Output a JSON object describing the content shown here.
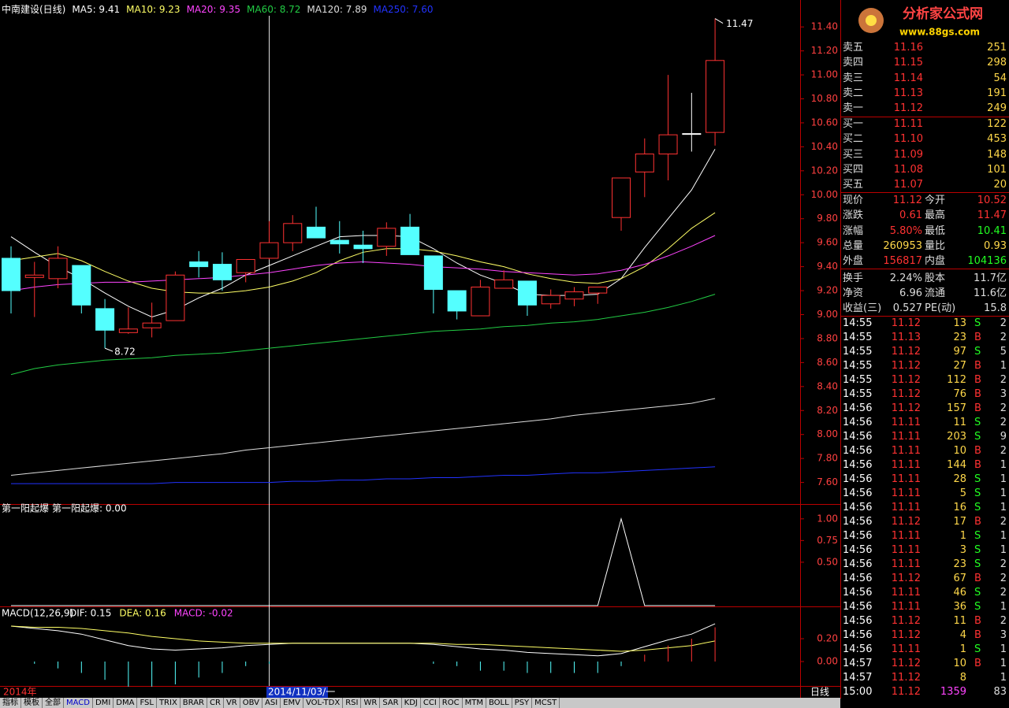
{
  "chart_data": [
    {
      "type": "candlestick",
      "title": "中南建设(日线)",
      "open": [
        9.47,
        9.31,
        9.3,
        9.41,
        9.05,
        8.85,
        8.89,
        8.95,
        9.44,
        9.42,
        9.35,
        9.47,
        9.6,
        9.73,
        9.62,
        9.58,
        9.57,
        9.73,
        9.49,
        9.2,
        8.99,
        9.22,
        9.28,
        9.09,
        9.13,
        9.18,
        9.81,
        10.19,
        10.34,
        10.51,
        10.52
      ],
      "high": [
        9.57,
        9.44,
        9.57,
        9.41,
        9.13,
        9.06,
        9.1,
        9.36,
        9.53,
        9.52,
        9.46,
        9.78,
        9.83,
        9.9,
        9.78,
        9.7,
        9.77,
        9.84,
        9.49,
        9.2,
        9.29,
        9.37,
        9.28,
        9.21,
        9.23,
        9.23,
        10.14,
        10.47,
        11.0,
        10.85,
        11.47
      ],
      "low": [
        9.01,
        8.98,
        9.22,
        9.01,
        8.72,
        8.84,
        8.81,
        8.95,
        9.31,
        9.2,
        9.27,
        9.46,
        9.53,
        9.64,
        9.51,
        9.43,
        9.49,
        9.5,
        9.01,
        8.96,
        8.99,
        9.22,
        8.99,
        9.05,
        9.07,
        9.09,
        9.7,
        9.98,
        10.12,
        10.36,
        10.41
      ],
      "close": [
        9.2,
        9.33,
        9.47,
        9.08,
        8.87,
        8.88,
        8.93,
        9.33,
        9.4,
        9.29,
        9.46,
        9.6,
        9.76,
        9.64,
        9.59,
        9.55,
        9.72,
        9.5,
        9.21,
        9.03,
        9.23,
        9.29,
        9.08,
        9.16,
        9.19,
        9.23,
        10.14,
        10.34,
        10.5,
        10.51,
        11.12
      ],
      "up_color": "#ff3232",
      "down_color": "#54ffff",
      "flat_color": "#ffffff",
      "series": [
        {
          "name": "MA5: 9.41",
          "color": "#ffffff",
          "values": [
            9.65,
            9.52,
            9.4,
            9.3,
            9.18,
            9.07,
            8.98,
            9.04,
            9.14,
            9.22,
            9.33,
            9.41,
            9.49,
            9.57,
            9.65,
            9.66,
            9.66,
            9.65,
            9.55,
            9.43,
            9.33,
            9.26,
            9.17,
            9.16,
            9.16,
            9.17,
            9.3,
            9.56,
            9.8,
            10.04,
            10.38
          ]
        },
        {
          "name": "MA10: 9.23",
          "color": "#ffff66",
          "values": [
            9.45,
            9.48,
            9.51,
            9.45,
            9.36,
            9.28,
            9.22,
            9.19,
            9.18,
            9.18,
            9.2,
            9.23,
            9.28,
            9.35,
            9.45,
            9.52,
            9.55,
            9.55,
            9.53,
            9.49,
            9.44,
            9.4,
            9.34,
            9.3,
            9.27,
            9.26,
            9.3,
            9.4,
            9.55,
            9.72,
            9.85
          ]
        },
        {
          "name": "MA20: 9.35",
          "color": "#ff44ff",
          "values": [
            9.2,
            9.23,
            9.25,
            9.26,
            9.27,
            9.27,
            9.28,
            9.29,
            9.3,
            9.31,
            9.33,
            9.35,
            9.38,
            9.41,
            9.43,
            9.44,
            9.43,
            9.42,
            9.4,
            9.39,
            9.38,
            9.36,
            9.35,
            9.34,
            9.33,
            9.34,
            9.37,
            9.42,
            9.49,
            9.57,
            9.66
          ]
        },
        {
          "name": "MA60: 8.72",
          "color": "#22cc44",
          "values": [
            8.5,
            8.55,
            8.58,
            8.6,
            8.62,
            8.63,
            8.64,
            8.66,
            8.67,
            8.68,
            8.7,
            8.72,
            8.74,
            8.76,
            8.78,
            8.8,
            8.82,
            8.84,
            8.86,
            8.87,
            8.88,
            8.9,
            8.91,
            8.93,
            8.94,
            8.96,
            8.99,
            9.02,
            9.06,
            9.11,
            9.17
          ]
        },
        {
          "name": "MA120: 7.89",
          "color": "#dddddd",
          "values": [
            7.66,
            7.68,
            7.7,
            7.72,
            7.74,
            7.76,
            7.78,
            7.8,
            7.82,
            7.84,
            7.87,
            7.89,
            7.91,
            7.93,
            7.95,
            7.97,
            7.99,
            8.01,
            8.03,
            8.05,
            8.07,
            8.09,
            8.11,
            8.13,
            8.16,
            8.18,
            8.2,
            8.22,
            8.24,
            8.26,
            8.3
          ]
        },
        {
          "name": "MA250: 7.60",
          "color": "#2233ff",
          "values": [
            7.59,
            7.59,
            7.59,
            7.59,
            7.59,
            7.59,
            7.59,
            7.6,
            7.6,
            7.6,
            7.6,
            7.6,
            7.61,
            7.61,
            7.62,
            7.62,
            7.63,
            7.63,
            7.64,
            7.64,
            7.65,
            7.66,
            7.66,
            7.67,
            7.68,
            7.68,
            7.69,
            7.7,
            7.71,
            7.72,
            7.73
          ]
        }
      ],
      "ylim": [
        7.42,
        11.48
      ],
      "yticks": [
        {
          "value": 7.6,
          "label": "7.60"
        },
        {
          "value": 7.8,
          "label": "7.80"
        },
        {
          "value": 8.0,
          "label": "8.00"
        },
        {
          "value": 8.2,
          "label": "8.20"
        },
        {
          "value": 8.4,
          "label": "8.40"
        },
        {
          "value": 8.6,
          "label": "8.60"
        },
        {
          "value": 8.8,
          "label": "8.80"
        },
        {
          "value": 9.0,
          "label": "9.00"
        },
        {
          "value": 9.2,
          "label": "9.20"
        },
        {
          "value": 9.4,
          "label": "9.40"
        },
        {
          "value": 9.6,
          "label": "9.60"
        },
        {
          "value": 9.8,
          "label": "9.80"
        },
        {
          "value": 10.0,
          "label": "10.00"
        },
        {
          "value": 10.2,
          "label": "10.20"
        },
        {
          "value": 10.4,
          "label": "10.40"
        },
        {
          "value": 10.6,
          "label": "10.60"
        },
        {
          "value": 10.8,
          "label": "10.80"
        },
        {
          "value": 11.0,
          "label": "11.00"
        },
        {
          "value": 11.2,
          "label": "11.20"
        },
        {
          "value": 11.4,
          "label": "11.40"
        }
      ]
    },
    {
      "type": "line",
      "title": "第一阳起爆",
      "series": [
        {
          "name": "第一阳起爆: 0.00",
          "color": "#ffffff",
          "values": [
            0,
            0,
            0,
            0,
            0,
            0,
            0,
            0,
            0,
            0,
            0,
            0,
            0,
            0,
            0,
            0,
            0,
            0,
            0,
            0,
            0,
            0,
            0,
            0,
            0,
            0,
            1,
            0,
            0,
            0,
            0
          ]
        }
      ],
      "ylim": [
        0,
        1.08
      ],
      "yticks": [
        {
          "value": 0.5,
          "label": "0.50"
        },
        {
          "value": 0.75,
          "label": "0.75"
        },
        {
          "value": 1,
          "label": "1.00"
        }
      ]
    },
    {
      "type": "macd",
      "title": "MACD(12,26,9)",
      "series": [
        {
          "name": "DIF: 0.15",
          "color": "#ffffff",
          "values": [
            0.31,
            0.29,
            0.27,
            0.24,
            0.19,
            0.14,
            0.11,
            0.1,
            0.11,
            0.12,
            0.14,
            0.15,
            0.16,
            0.16,
            0.16,
            0.16,
            0.16,
            0.16,
            0.15,
            0.13,
            0.11,
            0.1,
            0.08,
            0.07,
            0.06,
            0.05,
            0.07,
            0.13,
            0.19,
            0.24,
            0.33
          ]
        },
        {
          "name": "DEA: 0.16",
          "color": "#ffff66",
          "values": [
            0.31,
            0.3,
            0.3,
            0.29,
            0.27,
            0.25,
            0.22,
            0.2,
            0.18,
            0.17,
            0.16,
            0.16,
            0.16,
            0.16,
            0.16,
            0.16,
            0.16,
            0.16,
            0.16,
            0.15,
            0.15,
            0.14,
            0.13,
            0.12,
            0.11,
            0.1,
            0.09,
            0.1,
            0.12,
            0.14,
            0.18
          ]
        },
        {
          "name": "MACD: -0.02",
          "color": "#ff44ff",
          "type": "bar",
          "up_color": "#ff3232",
          "down_color": "#54ffff",
          "values": [
            0,
            -0.02,
            -0.06,
            -0.1,
            -0.16,
            -0.22,
            -0.22,
            -0.2,
            -0.14,
            -0.1,
            -0.04,
            -0.02,
            0,
            0,
            0,
            0,
            0,
            0,
            -0.02,
            -0.04,
            -0.08,
            -0.08,
            -0.1,
            -0.1,
            -0.1,
            -0.1,
            -0.04,
            0.06,
            0.14,
            0.2,
            0.3
          ]
        }
      ],
      "ylim": [
        -0.2,
        0.4
      ],
      "yticks": [
        {
          "value": 0,
          "label": "0.00"
        },
        {
          "value": 0.2,
          "label": "0.20"
        }
      ]
    }
  ],
  "bottom_bar": {
    "year": "2014年",
    "cursor_date": "2014/11/03/一",
    "period": "日线"
  },
  "tabs": [
    "指标",
    "模板",
    "全部",
    "MACD",
    "DMI",
    "DMA",
    "FSL",
    "TRIX",
    "BRAR",
    "CR",
    "VR",
    "OBV",
    "ASI",
    "EMV",
    "VOL-TDX",
    "RSI",
    "WR",
    "SAR",
    "KDJ",
    "CCI",
    "ROC",
    "MTM",
    "BOLL",
    "PSY",
    "MCST"
  ],
  "quote_panel": {
    "logo": [
      "分析家公式网",
      "www.88gs.com"
    ],
    "order_book": [
      [
        "卖五",
        "11.16",
        "251"
      ],
      [
        "卖四",
        "11.15",
        "298"
      ],
      [
        "卖三",
        "11.14",
        "54"
      ],
      [
        "卖二",
        "11.13",
        "191"
      ],
      [
        "卖一",
        "11.12",
        "249"
      ],
      [
        "买一",
        "11.11",
        "122"
      ],
      [
        "买二",
        "11.10",
        "453"
      ],
      [
        "买三",
        "11.09",
        "148"
      ],
      [
        "买四",
        "11.08",
        "101"
      ],
      [
        "买五",
        "11.07",
        "20"
      ]
    ],
    "stats": [
      [
        "现价",
        "11.12",
        "今开",
        "10.52"
      ],
      [
        "涨跌",
        "0.61",
        "最高",
        "11.47"
      ],
      [
        "涨幅",
        "5.80%",
        "最低",
        "10.41"
      ],
      [
        "总量",
        "260953",
        "量比",
        "0.93"
      ],
      [
        "外盘",
        "156817",
        "内盘",
        "104136"
      ],
      [
        "换手",
        "2.24%",
        "股本",
        "11.7亿"
      ],
      [
        "净资",
        "6.96",
        "流通",
        "11.6亿"
      ],
      [
        "收益(三)",
        "0.527",
        "PE(动)",
        "15.8"
      ]
    ],
    "trades": [
      [
        "14:55",
        "11.12",
        "13",
        "S",
        "2"
      ],
      [
        "14:55",
        "11.13",
        "23",
        "B",
        "2"
      ],
      [
        "14:55",
        "11.12",
        "97",
        "S",
        "5"
      ],
      [
        "14:55",
        "11.12",
        "27",
        "B",
        "1"
      ],
      [
        "14:55",
        "11.12",
        "112",
        "B",
        "2"
      ],
      [
        "14:55",
        "11.12",
        "76",
        "B",
        "3"
      ],
      [
        "14:56",
        "11.12",
        "157",
        "B",
        "2"
      ],
      [
        "14:56",
        "11.11",
        "11",
        "S",
        "2"
      ],
      [
        "14:56",
        "11.11",
        "203",
        "S",
        "9"
      ],
      [
        "14:56",
        "11.11",
        "10",
        "B",
        "2"
      ],
      [
        "14:56",
        "11.11",
        "144",
        "B",
        "1"
      ],
      [
        "14:56",
        "11.11",
        "28",
        "S",
        "1"
      ],
      [
        "14:56",
        "11.11",
        "5",
        "S",
        "1"
      ],
      [
        "14:56",
        "11.11",
        "16",
        "S",
        "1"
      ],
      [
        "14:56",
        "11.12",
        "17",
        "B",
        "2"
      ],
      [
        "14:56",
        "11.11",
        "1",
        "S",
        "1"
      ],
      [
        "14:56",
        "11.11",
        "3",
        "S",
        "1"
      ],
      [
        "14:56",
        "11.11",
        "23",
        "S",
        "2"
      ],
      [
        "14:56",
        "11.12",
        "67",
        "B",
        "2"
      ],
      [
        "14:56",
        "11.11",
        "46",
        "S",
        "2"
      ],
      [
        "14:56",
        "11.11",
        "36",
        "S",
        "1"
      ],
      [
        "14:56",
        "11.12",
        "11",
        "B",
        "2"
      ],
      [
        "14:56",
        "11.12",
        "4",
        "B",
        "3"
      ],
      [
        "14:56",
        "11.11",
        "1",
        "S",
        "1"
      ],
      [
        "14:57",
        "11.12",
        "10",
        "B",
        "1"
      ],
      [
        "14:57",
        "11.12",
        "8",
        "1"
      ],
      [
        "15:00",
        "11.12",
        "1359",
        "83"
      ]
    ]
  }
}
